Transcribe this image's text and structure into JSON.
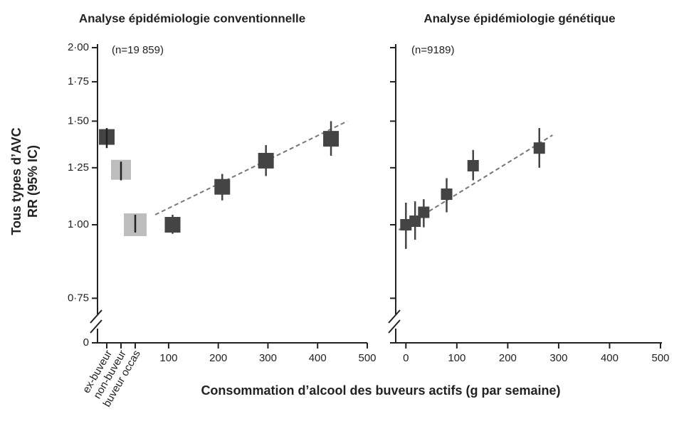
{
  "chart_data": [
    {
      "type": "scatter",
      "title": "Analyse épidémiologie conventionnelle",
      "annotation": "(n=19 859)",
      "ylabel": [
        "Tous types d’AVC",
        "RR (95% IC)"
      ],
      "xlabel": "Consommation d’alcool des buveurs actifs (g par semaine)",
      "log_y": true,
      "axis_break": true,
      "ylim": [
        0.72,
        2.0
      ],
      "yticks": [
        {
          "value": 2.0,
          "label": "2·00"
        },
        {
          "value": 1.75,
          "label": "1·75"
        },
        {
          "value": 1.5,
          "label": "1·50"
        },
        {
          "value": 1.25,
          "label": "1·25"
        },
        {
          "value": 1.0,
          "label": "1·00"
        },
        {
          "value": 0.75,
          "label": "0·75"
        },
        0
      ],
      "xlim": [
        60,
        500
      ],
      "xticks": [
        100,
        200,
        300,
        400,
        500
      ],
      "reference": {
        "categories": [
          "ex-buveur",
          "non-buveur",
          "buveur occas"
        ],
        "values": [
          1.41,
          1.24,
          1.0
        ],
        "ci_low": [
          1.35,
          1.19,
          0.97
        ],
        "ci_high": [
          1.46,
          1.28,
          1.04
        ],
        "colors": [
          "#444444",
          "#bdbdbd",
          "#bdbdbd"
        ]
      },
      "series": [
        {
          "color": "#444444",
          "x": [
            108,
            208,
            296,
            427
          ],
          "values": [
            1.0,
            1.16,
            1.285,
            1.4
          ],
          "ci_low": [
            0.965,
            1.1,
            1.21,
            1.31
          ],
          "ci_high": [
            1.04,
            1.22,
            1.366,
            1.5
          ]
        }
      ],
      "trend": {
        "color": "#777777",
        "x": [
          73,
          460
        ],
        "values": [
          1.04,
          1.5
        ]
      }
    },
    {
      "type": "scatter",
      "title": "Analyse épidémiologie génétique",
      "annotation": "(n=9189)",
      "sharey": true,
      "xlim": [
        -20,
        500
      ],
      "xticks": [
        0,
        100,
        200,
        300,
        400,
        500
      ],
      "series": [
        {
          "color": "#444444",
          "x": [
            0,
            18,
            35,
            80,
            132,
            262
          ],
          "values": [
            1.0,
            1.014,
            1.05,
            1.127,
            1.26,
            1.35
          ],
          "ci_low": [
            0.91,
            0.943,
            0.99,
            1.05,
            1.19,
            1.25
          ],
          "ci_high": [
            1.09,
            1.096,
            1.105,
            1.2,
            1.34,
            1.46
          ]
        }
      ],
      "trend": {
        "color": "#777777",
        "x": [
          -14,
          288
        ],
        "values": [
          0.98,
          1.42
        ]
      }
    }
  ]
}
